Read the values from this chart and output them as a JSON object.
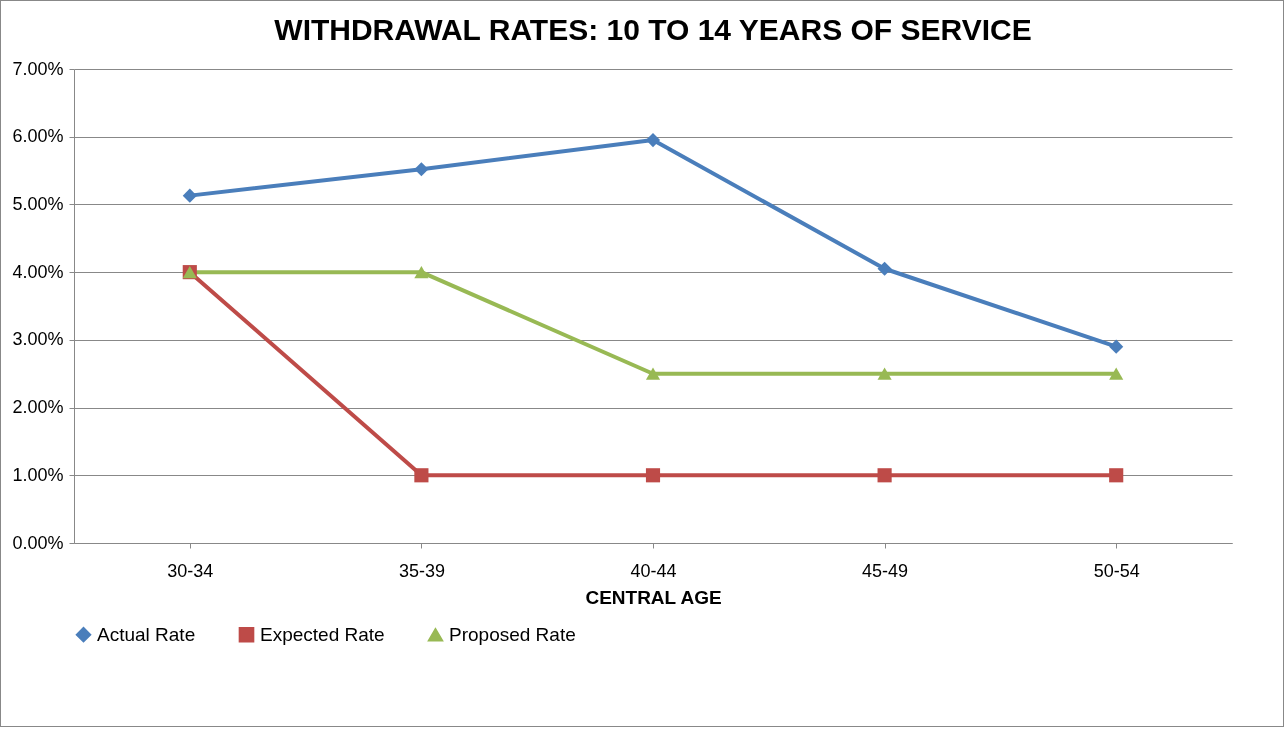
{
  "chart_data": {
    "type": "line",
    "title": "WITHDRAWAL RATES:  10 TO 14 YEARS OF SERVICE",
    "xlabel": "CENTRAL AGE",
    "categories": [
      "30-34",
      "35-39",
      "40-44",
      "45-49",
      "50-54"
    ],
    "series": [
      {
        "name": "Actual Rate",
        "color": "#4a7ebb",
        "marker": "diamond",
        "values": [
          5.13,
          5.52,
          5.95,
          4.05,
          2.9
        ]
      },
      {
        "name": "Expected Rate",
        "color": "#be4b48",
        "marker": "square",
        "values": [
          4,
          1,
          1,
          1,
          1
        ]
      },
      {
        "name": "Proposed Rate",
        "color": "#98b954",
        "marker": "triangle",
        "values": [
          4,
          4,
          2.5,
          2.5,
          2.5
        ]
      }
    ],
    "ylim": [
      0,
      7
    ],
    "yticks": [
      {
        "value": 0,
        "label": "0.00%"
      },
      {
        "value": 1,
        "label": "1.00%"
      },
      {
        "value": 2,
        "label": "2.00%"
      },
      {
        "value": 3,
        "label": "3.00%"
      },
      {
        "value": 4,
        "label": "4.00%"
      },
      {
        "value": 5,
        "label": "5.00%"
      },
      {
        "value": 6,
        "label": "6.00%"
      },
      {
        "value": 7,
        "label": "7.00%"
      }
    ],
    "grid": "y",
    "legend": "bottom",
    "line_style": "solid"
  }
}
